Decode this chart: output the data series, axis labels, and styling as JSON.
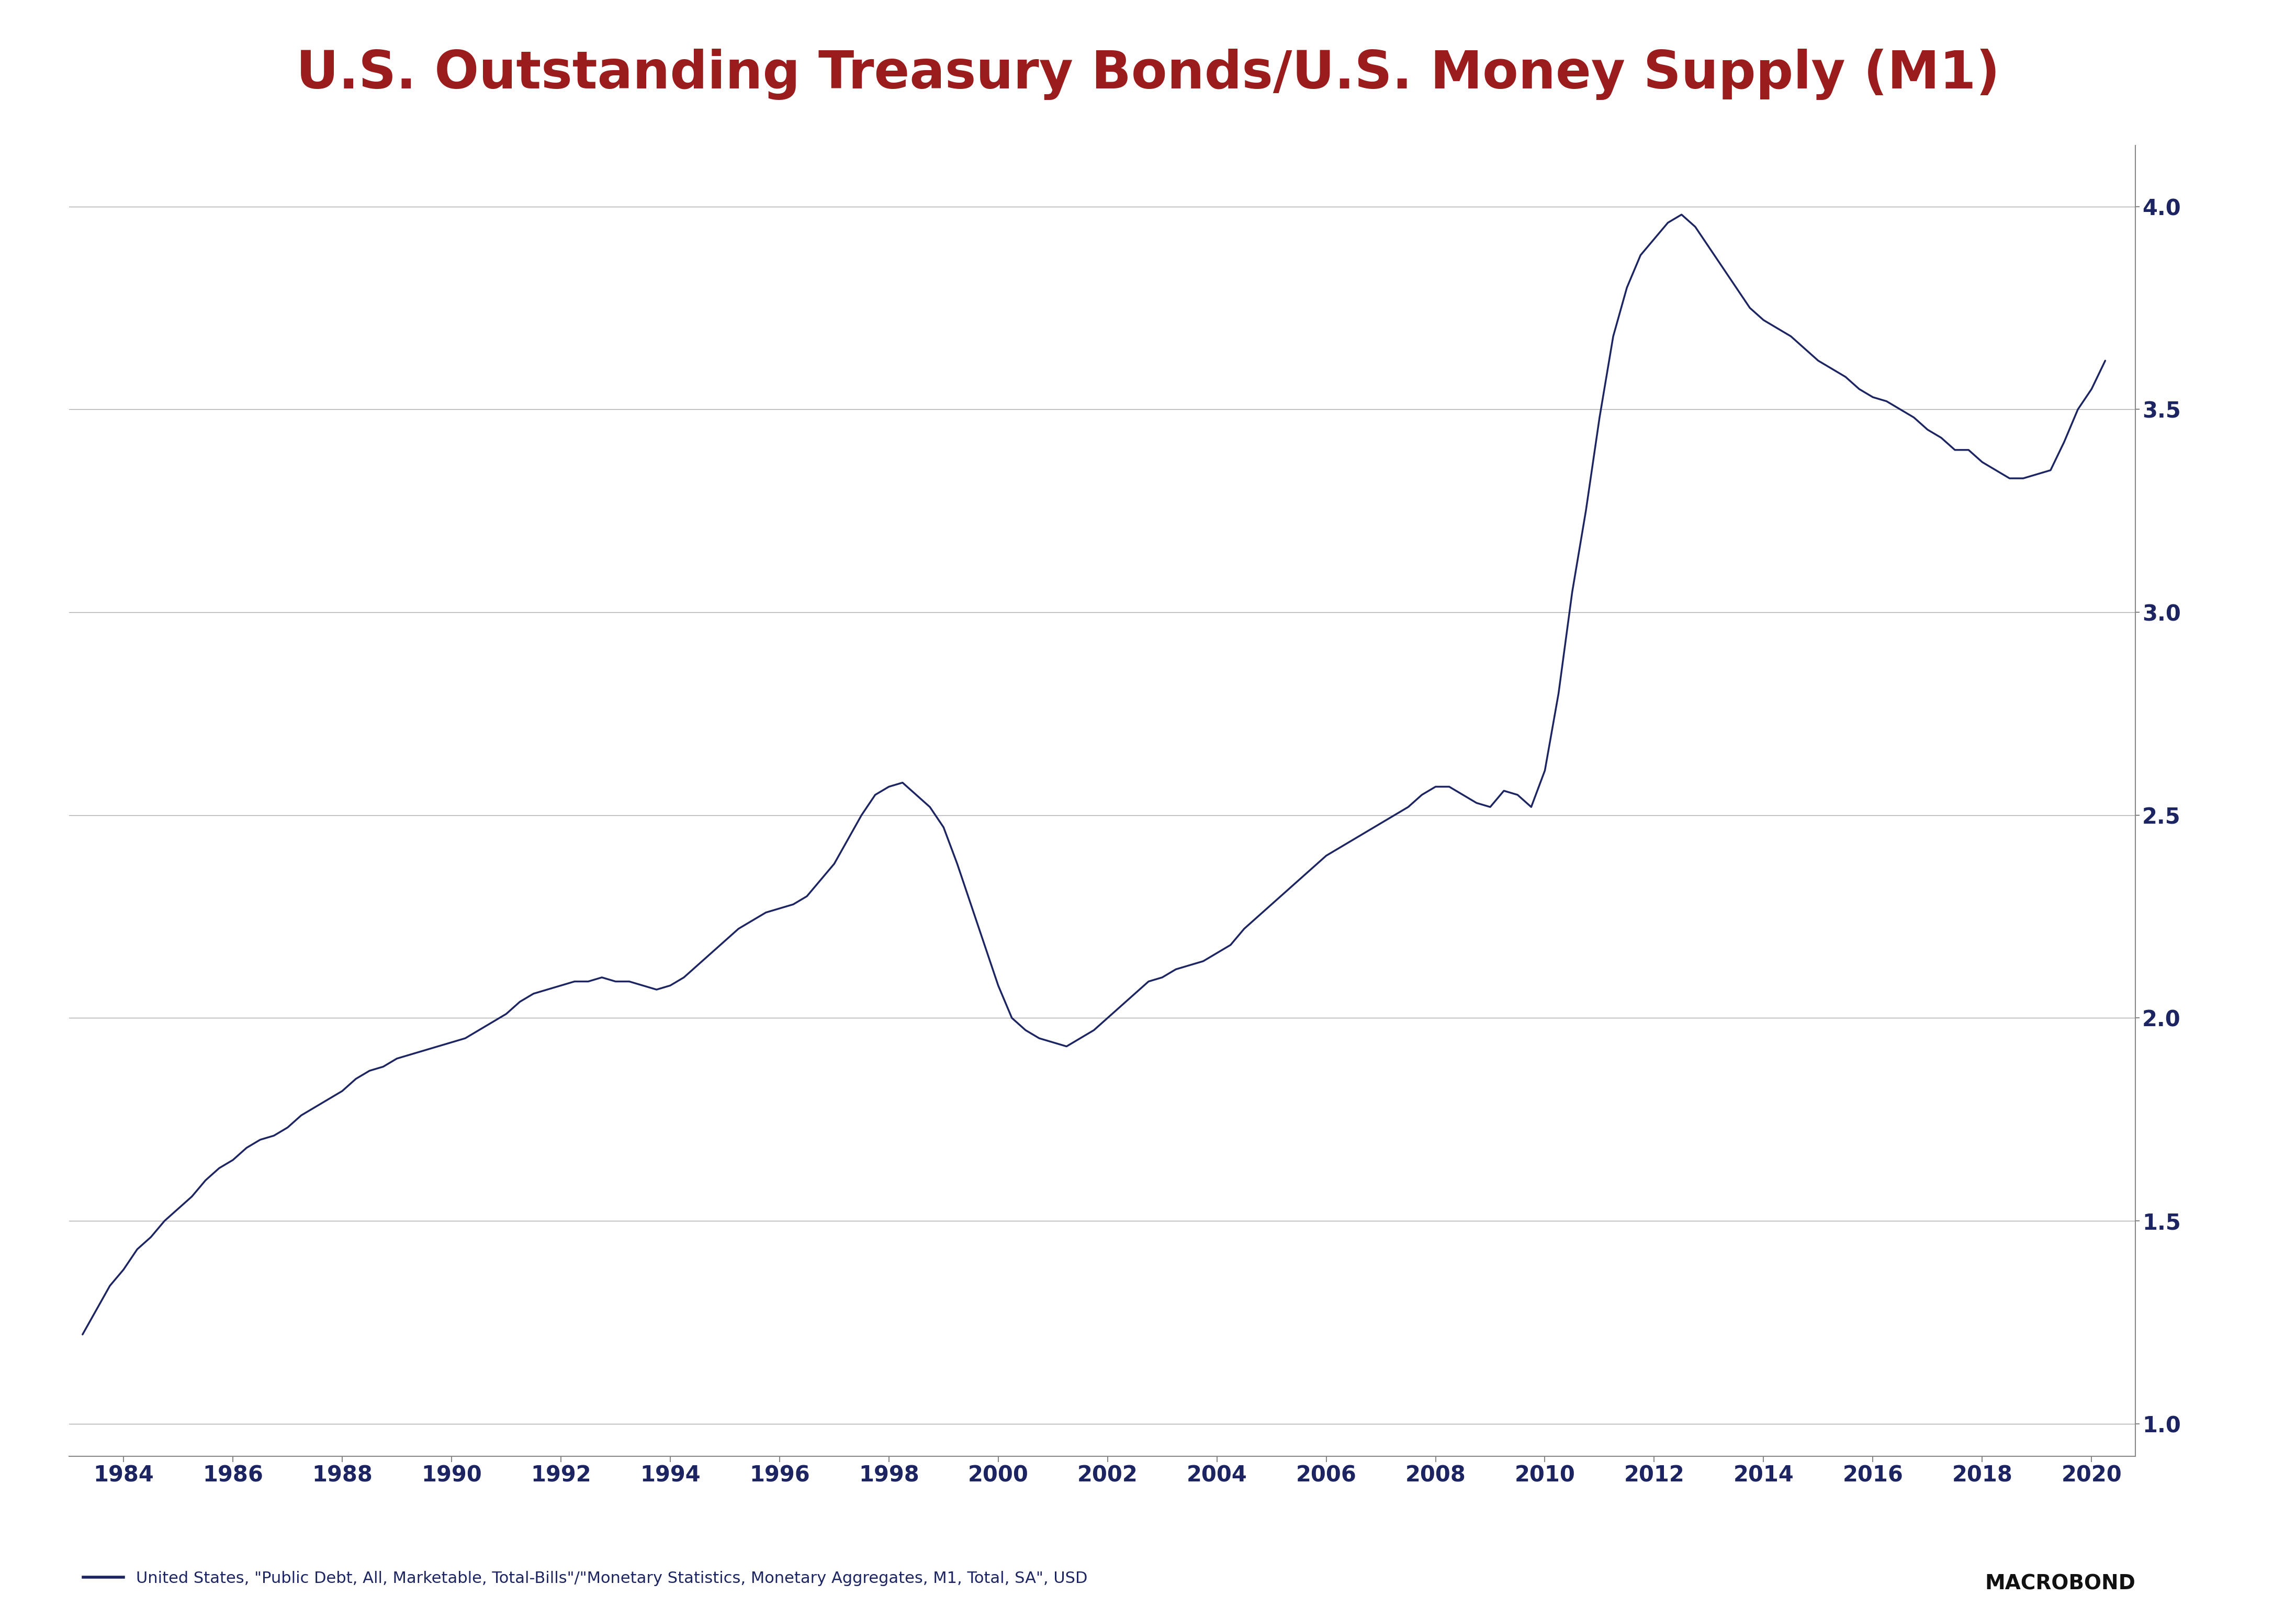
{
  "title": "U.S. Outstanding Treasury Bonds/U.S. Money Supply (M1)",
  "title_color": "#9B1C1C",
  "line_color": "#1C2561",
  "background_color": "#FFFFFF",
  "ylabel_color": "#1C2561",
  "xlabel_color": "#1C2561",
  "legend_text": "United States, \"Public Debt, All, Marketable, Total-Bills\"/\"Monetary Statistics, Monetary Aggregates, M1, Total, SA\", USD",
  "source_text": "MACROBOND",
  "yticks": [
    1.0,
    1.5,
    2.0,
    2.5,
    3.0,
    3.5,
    4.0
  ],
  "xlim": [
    1983.0,
    2020.8
  ],
  "ylim": [
    0.92,
    4.15
  ],
  "xtick_years": [
    1984,
    1986,
    1988,
    1990,
    1992,
    1994,
    1996,
    1998,
    2000,
    2002,
    2004,
    2006,
    2008,
    2010,
    2012,
    2014,
    2016,
    2018,
    2020
  ],
  "data": {
    "x": [
      1983.25,
      1983.5,
      1983.75,
      1984.0,
      1984.25,
      1984.5,
      1984.75,
      1985.0,
      1985.25,
      1985.5,
      1985.75,
      1986.0,
      1986.25,
      1986.5,
      1986.75,
      1987.0,
      1987.25,
      1987.5,
      1987.75,
      1988.0,
      1988.25,
      1988.5,
      1988.75,
      1989.0,
      1989.25,
      1989.5,
      1989.75,
      1990.0,
      1990.25,
      1990.5,
      1990.75,
      1991.0,
      1991.25,
      1991.5,
      1991.75,
      1992.0,
      1992.25,
      1992.5,
      1992.75,
      1993.0,
      1993.25,
      1993.5,
      1993.75,
      1994.0,
      1994.25,
      1994.5,
      1994.75,
      1995.0,
      1995.25,
      1995.5,
      1995.75,
      1996.0,
      1996.25,
      1996.5,
      1996.75,
      1997.0,
      1997.25,
      1997.5,
      1997.75,
      1998.0,
      1998.25,
      1998.5,
      1998.75,
      1999.0,
      1999.25,
      1999.5,
      1999.75,
      2000.0,
      2000.25,
      2000.5,
      2000.75,
      2001.0,
      2001.25,
      2001.5,
      2001.75,
      2002.0,
      2002.25,
      2002.5,
      2002.75,
      2003.0,
      2003.25,
      2003.5,
      2003.75,
      2004.0,
      2004.25,
      2004.5,
      2004.75,
      2005.0,
      2005.25,
      2005.5,
      2005.75,
      2006.0,
      2006.25,
      2006.5,
      2006.75,
      2007.0,
      2007.25,
      2007.5,
      2007.75,
      2008.0,
      2008.25,
      2008.5,
      2008.75,
      2009.0,
      2009.25,
      2009.5,
      2009.75,
      2010.0,
      2010.25,
      2010.5,
      2010.75,
      2011.0,
      2011.25,
      2011.5,
      2011.75,
      2012.0,
      2012.25,
      2012.5,
      2012.75,
      2013.0,
      2013.25,
      2013.5,
      2013.75,
      2014.0,
      2014.25,
      2014.5,
      2014.75,
      2015.0,
      2015.25,
      2015.5,
      2015.75,
      2016.0,
      2016.25,
      2016.5,
      2016.75,
      2017.0,
      2017.25,
      2017.5,
      2017.75,
      2018.0,
      2018.25,
      2018.5,
      2018.75,
      2019.0,
      2019.25,
      2019.5,
      2019.75,
      2020.0,
      2020.25
    ],
    "y": [
      1.22,
      1.28,
      1.34,
      1.38,
      1.43,
      1.46,
      1.5,
      1.53,
      1.56,
      1.6,
      1.63,
      1.65,
      1.68,
      1.7,
      1.71,
      1.73,
      1.76,
      1.78,
      1.8,
      1.82,
      1.85,
      1.87,
      1.88,
      1.9,
      1.91,
      1.92,
      1.93,
      1.94,
      1.95,
      1.97,
      1.99,
      2.01,
      2.04,
      2.06,
      2.07,
      2.08,
      2.09,
      2.09,
      2.1,
      2.09,
      2.09,
      2.08,
      2.07,
      2.08,
      2.1,
      2.13,
      2.16,
      2.19,
      2.22,
      2.24,
      2.26,
      2.27,
      2.28,
      2.3,
      2.34,
      2.38,
      2.44,
      2.5,
      2.55,
      2.57,
      2.58,
      2.55,
      2.52,
      2.47,
      2.38,
      2.28,
      2.18,
      2.08,
      2.0,
      1.97,
      1.95,
      1.94,
      1.93,
      1.95,
      1.97,
      2.0,
      2.03,
      2.06,
      2.09,
      2.1,
      2.12,
      2.13,
      2.14,
      2.16,
      2.18,
      2.22,
      2.25,
      2.28,
      2.31,
      2.34,
      2.37,
      2.4,
      2.42,
      2.44,
      2.46,
      2.48,
      2.5,
      2.52,
      2.55,
      2.57,
      2.57,
      2.55,
      2.53,
      2.52,
      2.56,
      2.55,
      2.52,
      2.61,
      2.8,
      3.05,
      3.25,
      3.48,
      3.68,
      3.8,
      3.88,
      3.92,
      3.96,
      3.98,
      3.95,
      3.9,
      3.85,
      3.8,
      3.75,
      3.72,
      3.7,
      3.68,
      3.65,
      3.62,
      3.6,
      3.58,
      3.55,
      3.53,
      3.52,
      3.5,
      3.48,
      3.45,
      3.43,
      3.4,
      3.4,
      3.37,
      3.35,
      3.33,
      3.33,
      3.34,
      3.35,
      3.42,
      3.5,
      3.55,
      3.62
    ]
  }
}
